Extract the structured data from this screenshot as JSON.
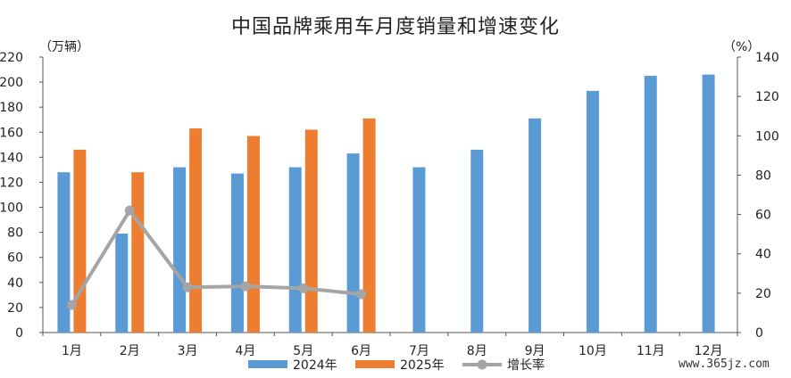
{
  "chart_data": {
    "type": "bar",
    "title": "中国品牌乘用车月度销量和增速变化",
    "ylabel_left_unit": "（万辆）",
    "ylabel_right_unit": "（%）",
    "categories": [
      "1月",
      "2月",
      "3月",
      "4月",
      "5月",
      "6月",
      "7月",
      "8月",
      "9月",
      "10月",
      "11月",
      "12月"
    ],
    "series": [
      {
        "name": "2024年",
        "type": "bar",
        "axis": "left",
        "color": "#5B9BD5",
        "values": [
          128,
          79,
          132,
          127,
          132,
          143,
          132,
          146,
          171,
          193,
          205,
          206
        ]
      },
      {
        "name": "2025年",
        "type": "bar",
        "axis": "left",
        "color": "#ED7D31",
        "values": [
          146,
          128,
          163,
          157,
          162,
          171,
          null,
          null,
          null,
          null,
          null,
          null
        ]
      },
      {
        "name": "增长率",
        "type": "line",
        "axis": "right",
        "color": "#A5A5A5",
        "values": [
          14,
          62,
          23,
          23.5,
          22.5,
          19.5,
          null,
          null,
          null,
          null,
          null,
          null
        ]
      }
    ],
    "ylim_left": [
      0,
      220
    ],
    "yticks_left": [
      0,
      20,
      40,
      60,
      80,
      100,
      120,
      140,
      160,
      180,
      200,
      220
    ],
    "ylim_right": [
      0,
      140
    ],
    "yticks_right": [
      0,
      20,
      40,
      60,
      80,
      100,
      120,
      140
    ],
    "grid": false,
    "legend_position": "bottom"
  },
  "watermark": "www.365jz.com"
}
